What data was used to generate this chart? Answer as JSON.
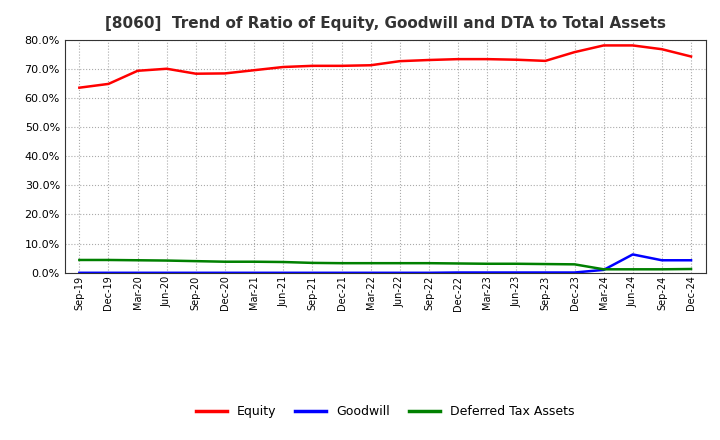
{
  "title": "[8060]  Trend of Ratio of Equity, Goodwill and DTA to Total Assets",
  "x_labels": [
    "Sep-19",
    "Dec-19",
    "Mar-20",
    "Jun-20",
    "Sep-20",
    "Dec-20",
    "Mar-21",
    "Jun-21",
    "Sep-21",
    "Dec-21",
    "Mar-22",
    "Jun-22",
    "Sep-22",
    "Dec-22",
    "Mar-23",
    "Jun-23",
    "Sep-23",
    "Dec-23",
    "Mar-24",
    "Jun-24",
    "Sep-24",
    "Dec-24"
  ],
  "equity": [
    0.635,
    0.648,
    0.693,
    0.7,
    0.683,
    0.684,
    0.695,
    0.706,
    0.71,
    0.71,
    0.712,
    0.726,
    0.73,
    0.733,
    0.733,
    0.731,
    0.727,
    0.757,
    0.78,
    0.78,
    0.767,
    0.742
  ],
  "goodwill": [
    0.0,
    0.0,
    0.0,
    0.0,
    0.0,
    0.0,
    0.0,
    0.0,
    0.0,
    0.0,
    0.0,
    0.0,
    0.0,
    0.001,
    0.001,
    0.001,
    0.001,
    0.001,
    0.01,
    0.063,
    0.043,
    0.043
  ],
  "dta": [
    0.044,
    0.044,
    0.043,
    0.042,
    0.04,
    0.038,
    0.038,
    0.037,
    0.034,
    0.033,
    0.033,
    0.033,
    0.033,
    0.032,
    0.031,
    0.031,
    0.03,
    0.029,
    0.012,
    0.012,
    0.012,
    0.013
  ],
  "equity_color": "#FF0000",
  "goodwill_color": "#0000FF",
  "dta_color": "#008000",
  "ylim": [
    0.0,
    0.8
  ],
  "yticks": [
    0.0,
    0.1,
    0.2,
    0.3,
    0.4,
    0.5,
    0.6,
    0.7,
    0.8
  ],
  "background_color": "#FFFFFF",
  "grid_color": "#AAAAAA",
  "legend_labels": [
    "Equity",
    "Goodwill",
    "Deferred Tax Assets"
  ]
}
